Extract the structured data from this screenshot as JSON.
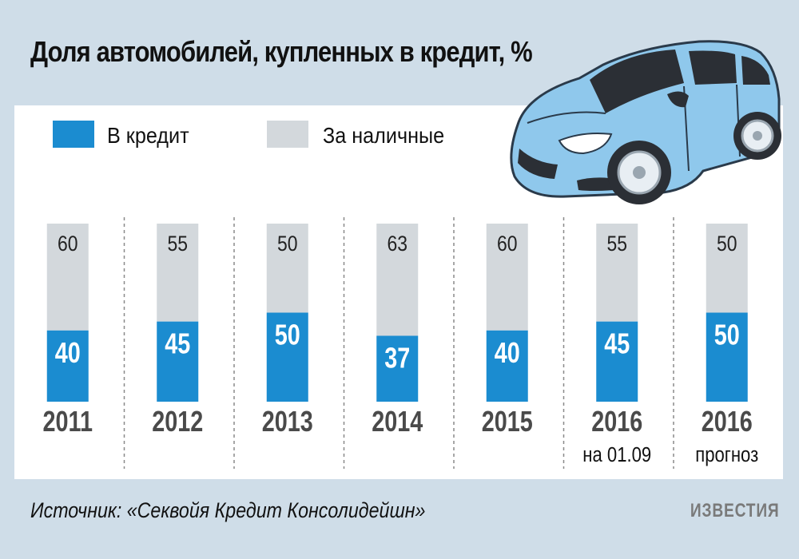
{
  "title": "Доля автомобилей, купленных в кредит, %",
  "legend": [
    {
      "label": "В кредит",
      "color": "#1b8cd0"
    },
    {
      "label": "За наличные",
      "color": "#d3d8dc"
    }
  ],
  "source": "Источник: «Секвойя Кредит Консолидейшн»",
  "brand": "ИЗВЕСТИЯ",
  "chart_data": {
    "type": "bar",
    "stacked": true,
    "title": "Доля автомобилей, купленных в кредит, %",
    "categories": [
      {
        "line1": "2011",
        "line2": ""
      },
      {
        "line1": "2012",
        "line2": ""
      },
      {
        "line1": "2013",
        "line2": ""
      },
      {
        "line1": "2014",
        "line2": ""
      },
      {
        "line1": "2015",
        "line2": ""
      },
      {
        "line1": "2016",
        "line2": "на 01.09"
      },
      {
        "line1": "2016",
        "line2": "прогноз"
      }
    ],
    "series": [
      {
        "name": "В кредит",
        "values": [
          40,
          45,
          50,
          37,
          40,
          45,
          50
        ],
        "color": "#1b8cd0"
      },
      {
        "name": "За наличные",
        "values": [
          60,
          55,
          50,
          63,
          60,
          55,
          50
        ],
        "color": "#d3d8dc"
      }
    ],
    "ylim": [
      0,
      100
    ],
    "grid": false,
    "legend_position": "top-left"
  }
}
